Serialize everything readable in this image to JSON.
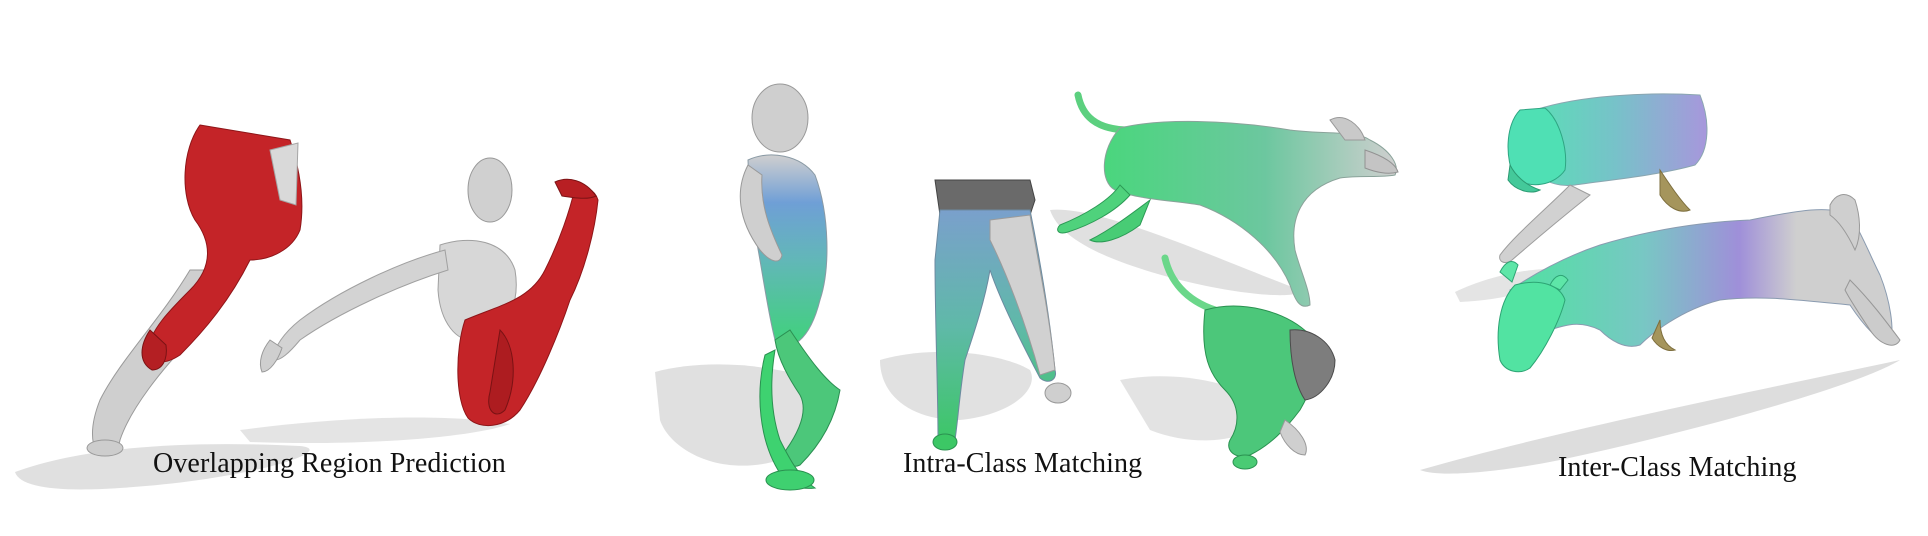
{
  "figure": {
    "captions": [
      "Overlapping Region Prediction",
      "Intra-Class Matching",
      "Inter-Class Matching"
    ]
  },
  "colors": {
    "overlap_red": "#c42428",
    "mesh_gray": "#cfcfcf",
    "match_green": "#3fd27a",
    "match_blue": "#6f9fd6",
    "match_purple": "#9a86d6",
    "shadow": "#d9d9d9"
  },
  "icons": {
    "panel_1": [
      "legs-mesh",
      "human-body-mesh"
    ],
    "panel_2": [
      "human-body-mesh",
      "legs-mesh",
      "dog-mesh",
      "crouching-dog-mesh"
    ],
    "panel_3": [
      "lion-mesh",
      "horse-mesh"
    ]
  }
}
